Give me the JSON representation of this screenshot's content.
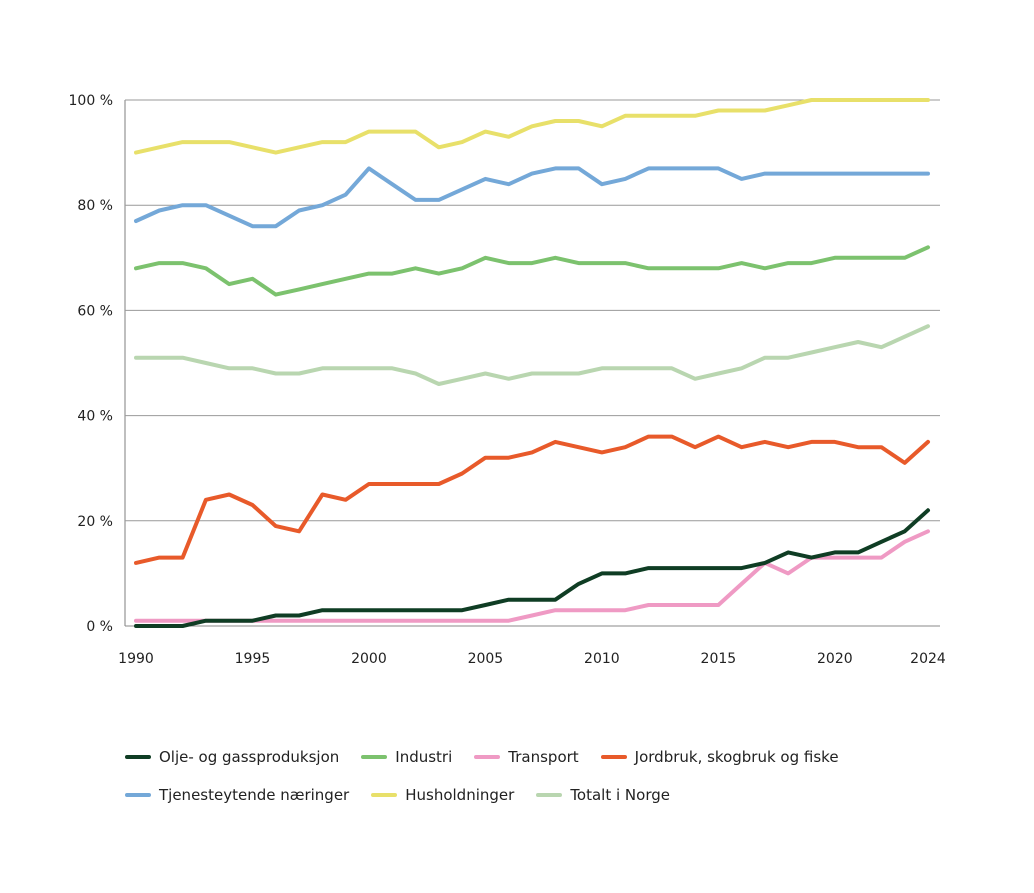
{
  "chart_data": {
    "type": "line",
    "title": "",
    "xlabel": "",
    "ylabel": "",
    "ylim": [
      0,
      100
    ],
    "y_ticks": [
      "0 %",
      "20 %",
      "40 %",
      "60 %",
      "80 %",
      "100 %"
    ],
    "y_tick_values": [
      0,
      20,
      40,
      60,
      80,
      100
    ],
    "x_ticks": [
      "1990",
      "1995",
      "2000",
      "2005",
      "2010",
      "2015",
      "2020",
      "2024"
    ],
    "x_tick_values": [
      1990,
      1995,
      2000,
      2005,
      2010,
      2015,
      2020,
      2024
    ],
    "grid": "horizontal",
    "legend_placement": "bottom",
    "x": [
      1990,
      1991,
      1992,
      1993,
      1994,
      1995,
      1996,
      1997,
      1998,
      1999,
      2000,
      2001,
      2002,
      2003,
      2004,
      2005,
      2006,
      2007,
      2008,
      2009,
      2010,
      2011,
      2012,
      2013,
      2014,
      2015,
      2016,
      2017,
      2018,
      2019,
      2020,
      2021,
      2022,
      2023,
      2024
    ],
    "series": [
      {
        "name": "Olje- og gassproduksjon",
        "color": "#0f3d24",
        "values": [
          0,
          0,
          0,
          1,
          1,
          1,
          2,
          2,
          3,
          3,
          3,
          3,
          3,
          3,
          3,
          4,
          5,
          5,
          5,
          8,
          10,
          10,
          11,
          11,
          11,
          11,
          11,
          12,
          14,
          13,
          14,
          14,
          16,
          18,
          22
        ]
      },
      {
        "name": "Industri",
        "color": "#7cc26e",
        "values": [
          68,
          69,
          69,
          68,
          65,
          66,
          63,
          64,
          65,
          66,
          67,
          67,
          68,
          67,
          68,
          70,
          69,
          69,
          70,
          69,
          69,
          69,
          68,
          68,
          68,
          68,
          69,
          68,
          69,
          69,
          70,
          70,
          70,
          70,
          72
        ]
      },
      {
        "name": "Transport",
        "color": "#ef9ac4",
        "values": [
          1,
          1,
          1,
          1,
          1,
          1,
          1,
          1,
          1,
          1,
          1,
          1,
          1,
          1,
          1,
          1,
          1,
          2,
          3,
          3,
          3,
          3,
          4,
          4,
          4,
          4,
          8,
          12,
          10,
          13,
          13,
          13,
          13,
          16,
          18
        ]
      },
      {
        "name": "Jordbruk, skogbruk og fiske",
        "color": "#e85a2a",
        "values": [
          12,
          13,
          13,
          24,
          25,
          23,
          19,
          18,
          25,
          24,
          27,
          27,
          27,
          27,
          29,
          32,
          32,
          33,
          35,
          34,
          33,
          34,
          36,
          36,
          34,
          36,
          34,
          35,
          34,
          35,
          35,
          34,
          34,
          31,
          35
        ]
      },
      {
        "name": "Tjenesteytende næringer",
        "color": "#74a8d8",
        "values": [
          77,
          79,
          80,
          80,
          78,
          76,
          76,
          79,
          80,
          82,
          87,
          84,
          81,
          81,
          83,
          85,
          84,
          86,
          87,
          87,
          84,
          85,
          87,
          87,
          87,
          87,
          85,
          86,
          86,
          86,
          86,
          86,
          86,
          86,
          86
        ]
      },
      {
        "name": "Husholdninger",
        "color": "#e8e06a",
        "values": [
          90,
          91,
          92,
          92,
          92,
          91,
          90,
          91,
          92,
          92,
          94,
          94,
          94,
          91,
          92,
          94,
          93,
          95,
          96,
          96,
          95,
          97,
          97,
          97,
          97,
          98,
          98,
          98,
          99,
          100,
          100,
          100,
          100,
          100,
          100
        ]
      },
      {
        "name": "Totalt i Norge",
        "color": "#b9d6b0",
        "values": [
          51,
          51,
          51,
          50,
          49,
          49,
          48,
          48,
          49,
          49,
          49,
          49,
          48,
          46,
          47,
          48,
          47,
          48,
          48,
          48,
          49,
          49,
          49,
          49,
          47,
          48,
          49,
          51,
          51,
          52,
          53,
          54,
          53,
          55,
          57
        ]
      }
    ]
  }
}
